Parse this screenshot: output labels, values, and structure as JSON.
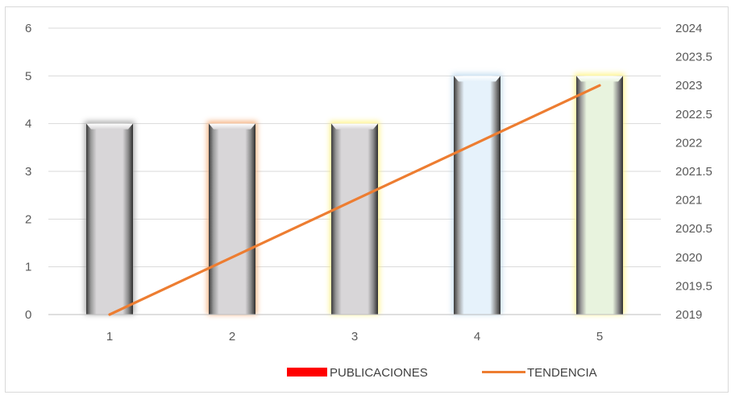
{
  "chart_data": {
    "type": "bar",
    "categories": [
      "1",
      "2",
      "3",
      "4",
      "5"
    ],
    "series": [
      {
        "name": "PUBLICACIONES",
        "type": "bar",
        "axis": "primary",
        "values": [
          4,
          4,
          4,
          5,
          5
        ],
        "fills": [
          "#d8d6d8",
          "#d8d6d8",
          "#d8d6d8",
          "#e6f2fb",
          "#e8f3de"
        ],
        "glows": [
          "#9e9e9e",
          "#f4a46a",
          "#fff27a",
          "#bcd8ee",
          "#fff27a"
        ]
      },
      {
        "name": "TENDENCIA",
        "type": "line",
        "axis": "secondary",
        "values": [
          2019,
          2020,
          2021,
          2022,
          2023
        ]
      }
    ],
    "yaxis": {
      "min": 0,
      "max": 6,
      "step": 1,
      "ticks": [
        "0",
        "1",
        "2",
        "3",
        "4",
        "5",
        "6"
      ]
    },
    "y2axis": {
      "min": 2019,
      "max": 2024,
      "step": 0.5,
      "ticks": [
        "2019",
        "2019.5",
        "2020",
        "2020.5",
        "2021",
        "2021.5",
        "2022",
        "2022.5",
        "2023",
        "2023.5",
        "2024"
      ]
    },
    "grid": true,
    "legend": {
      "position": "bottom",
      "items": [
        {
          "label": "PUBLICACIONES",
          "color": "#ff0000",
          "symbol": "bar"
        },
        {
          "label": "TENDENCIA",
          "color": "#ed7d31",
          "symbol": "line"
        }
      ]
    },
    "title": "",
    "xlabel": "",
    "ylabel": "",
    "colors": {
      "line": "#ed7d31",
      "grid": "#d9d9d9",
      "axis": "#bfbfbf"
    }
  }
}
